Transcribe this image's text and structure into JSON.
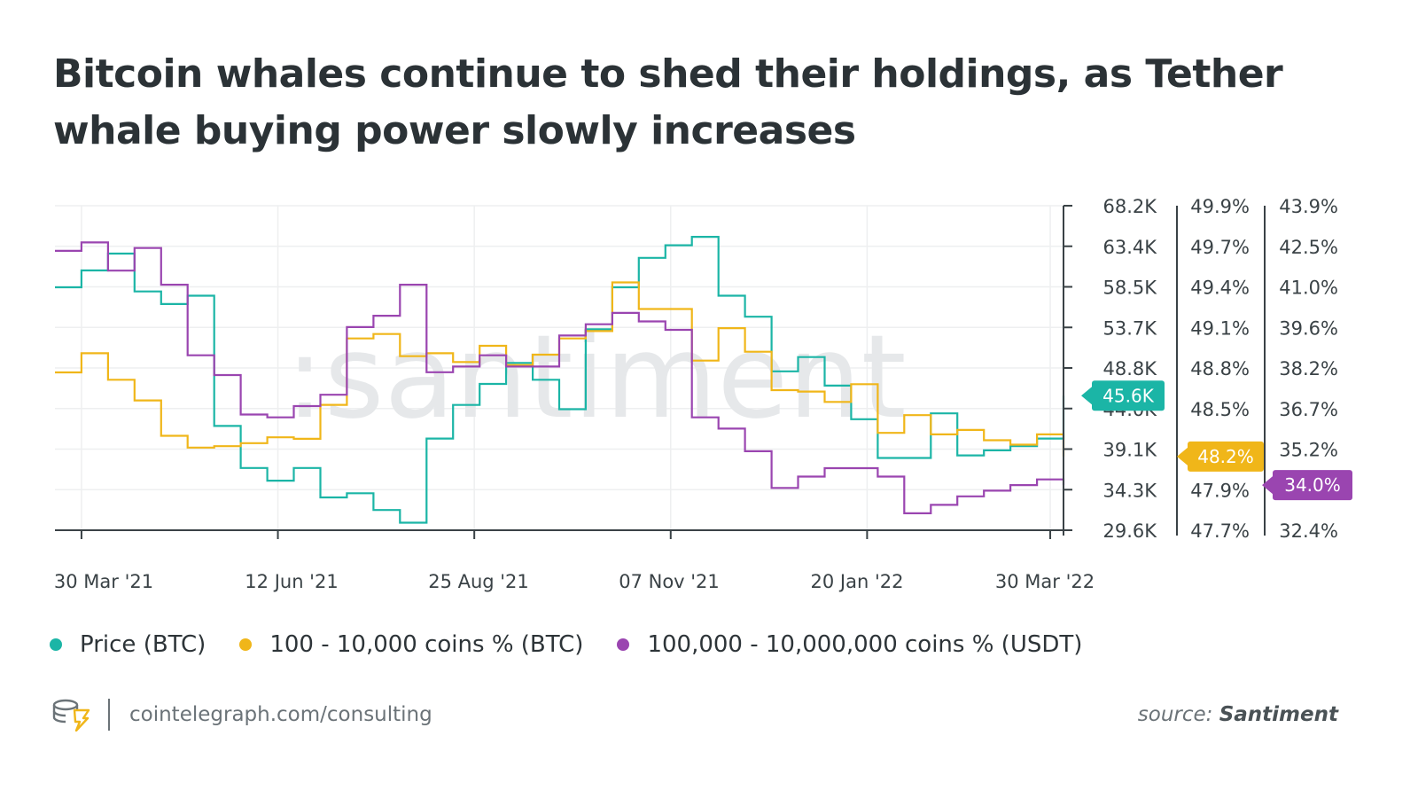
{
  "title": "Bitcoin whales continue to shed their holdings, as Tether whale buying power slowly increases",
  "watermark": ":santiment",
  "footer": {
    "site": "cointelegraph.com/consulting",
    "source_prefix": "source:",
    "source_name": "Santiment",
    "logo_icon": "cointelegraph-logo-icon"
  },
  "chart_data": {
    "type": "line",
    "x": [
      "2021-03-20",
      "2021-03-30",
      "2021-04-09",
      "2021-04-19",
      "2021-04-29",
      "2021-05-09",
      "2021-05-19",
      "2021-05-29",
      "2021-06-08",
      "2021-06-18",
      "2021-06-28",
      "2021-07-08",
      "2021-07-18",
      "2021-07-28",
      "2021-08-07",
      "2021-08-17",
      "2021-08-27",
      "2021-09-06",
      "2021-09-16",
      "2021-09-26",
      "2021-10-06",
      "2021-10-16",
      "2021-10-26",
      "2021-11-05",
      "2021-11-15",
      "2021-11-25",
      "2021-12-05",
      "2021-12-15",
      "2021-12-25",
      "2022-01-04",
      "2022-01-14",
      "2022-01-24",
      "2022-02-03",
      "2022-02-13",
      "2022-02-23",
      "2022-03-05",
      "2022-03-15",
      "2022-03-25",
      "2022-04-04"
    ],
    "x_ticks": [
      "30 Mar '21",
      "12 Jun '21",
      "25 Aug '21",
      "07 Nov '21",
      "20 Jan '22",
      "30 Mar '22"
    ],
    "series": [
      {
        "name": "Price (BTC)",
        "color": "#1bb5a6",
        "axis": "price",
        "values": [
          58500,
          60500,
          62500,
          58000,
          56500,
          57500,
          42000,
          37000,
          35500,
          37000,
          33500,
          34000,
          32000,
          30500,
          40500,
          44500,
          47000,
          49500,
          47500,
          44000,
          53500,
          58500,
          62000,
          63500,
          64500,
          57500,
          55000,
          48500,
          50200,
          46800,
          42800,
          38200,
          38200,
          43500,
          38500,
          39100,
          39600,
          40500,
          45600
        ]
      },
      {
        "name": "100 - 10,000 coins % (BTC)",
        "color": "#f0b619",
        "axis": "pct_btc",
        "values": [
          48.77,
          48.9,
          48.72,
          48.58,
          48.34,
          48.26,
          48.27,
          48.29,
          48.33,
          48.32,
          48.55,
          49.0,
          49.03,
          48.88,
          48.9,
          48.84,
          48.95,
          48.82,
          48.89,
          49.0,
          49.05,
          49.38,
          49.2,
          49.2,
          48.85,
          49.07,
          48.91,
          48.65,
          48.64,
          48.57,
          48.69,
          48.36,
          48.48,
          48.35,
          48.38,
          48.31,
          48.28,
          48.35,
          48.2
        ]
      },
      {
        "name": "100,000 - 10,000,000 coins % (USDT)",
        "color": "#9a45b0",
        "axis": "pct_usdt",
        "values": [
          42.3,
          42.6,
          41.6,
          42.4,
          41.1,
          38.6,
          37.9,
          36.5,
          36.4,
          36.8,
          37.2,
          39.6,
          40.0,
          41.1,
          38.0,
          38.2,
          38.6,
          38.2,
          38.2,
          39.3,
          39.7,
          40.1,
          39.8,
          39.5,
          36.4,
          36.0,
          35.2,
          33.9,
          34.3,
          34.6,
          34.6,
          34.3,
          33.0,
          33.3,
          33.6,
          33.8,
          34.0,
          34.2,
          34.0
        ]
      }
    ],
    "axes": [
      {
        "id": "price",
        "ylim": [
          29600,
          68200
        ],
        "ticks": [
          "68.2K",
          "63.4K",
          "58.5K",
          "53.7K",
          "48.8K",
          "44.0K",
          "39.1K",
          "34.3K",
          "29.6K"
        ]
      },
      {
        "id": "pct_btc",
        "ylim": [
          47.7,
          49.9
        ],
        "ticks": [
          "49.9%",
          "49.7%",
          "49.4%",
          "49.1%",
          "48.8%",
          "48.5%",
          "48.2%",
          "47.9%",
          "47.7%"
        ]
      },
      {
        "id": "pct_usdt",
        "ylim": [
          32.4,
          43.9
        ],
        "ticks": [
          "43.9%",
          "42.5%",
          "41.0%",
          "39.6%",
          "38.2%",
          "36.7%",
          "35.2%",
          "34.0%",
          "32.4%"
        ]
      }
    ],
    "badges": [
      {
        "series": 0,
        "label": "45.6K",
        "value": 45600
      },
      {
        "series": 1,
        "label": "48.2%",
        "value": 48.2
      },
      {
        "series": 2,
        "label": "34.0%",
        "value": 34.0
      }
    ],
    "grid": true,
    "legend": "bottom-left"
  }
}
